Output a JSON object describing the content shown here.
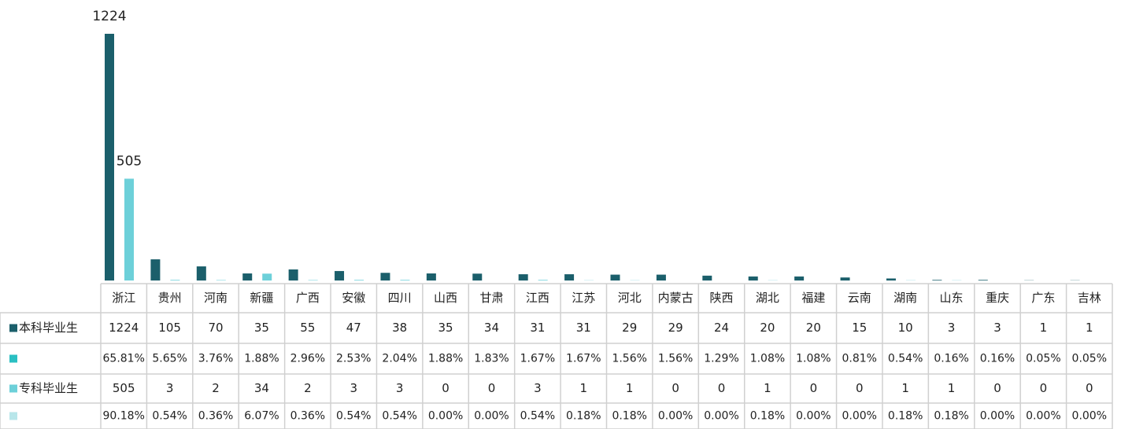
{
  "chart_data": {
    "type": "bar",
    "categories": [
      "浙江",
      "贵州",
      "河南",
      "新疆",
      "广西",
      "安徽",
      "四川",
      "山西",
      "甘肃",
      "江西",
      "江苏",
      "河北",
      "内蒙古",
      "陕西",
      "湖北",
      "福建",
      "云南",
      "湖南",
      "山东",
      "重庆",
      "广东",
      "吉林"
    ],
    "series": [
      {
        "name": "本科毕业生",
        "color": "#1b5f6b",
        "values": [
          1224,
          105,
          70,
          35,
          55,
          47,
          38,
          35,
          34,
          31,
          31,
          29,
          29,
          24,
          20,
          20,
          15,
          10,
          3,
          3,
          1,
          1
        ]
      },
      {
        "color": "#2abfc2",
        "values": [
          65.81,
          5.65,
          3.76,
          1.88,
          2.96,
          2.53,
          2.04,
          1.88,
          1.83,
          1.67,
          1.67,
          1.56,
          1.56,
          1.29,
          1.08,
          1.08,
          0.81,
          0.54,
          0.16,
          0.16,
          0.05,
          0.05
        ],
        "value_labels": [
          "65.81%",
          "5.65%",
          "3.76%",
          "1.88%",
          "2.96%",
          "2.53%",
          "2.04%",
          "1.88%",
          "1.83%",
          "1.67%",
          "1.67%",
          "1.56%",
          "1.56%",
          "1.29%",
          "1.08%",
          "1.08%",
          "0.81%",
          "0.54%",
          "0.16%",
          "0.16%",
          "0.05%",
          "0.05%"
        ]
      },
      {
        "name": "专科毕业生",
        "color": "#6dd0d9",
        "values": [
          505,
          3,
          2,
          34,
          2,
          3,
          3,
          0,
          0,
          3,
          1,
          1,
          0,
          0,
          1,
          0,
          0,
          1,
          1,
          0,
          0,
          0
        ]
      },
      {
        "color": "#b8e6ea",
        "values": [
          90.18,
          0.54,
          0.36,
          6.07,
          0.36,
          0.54,
          0.54,
          0,
          0,
          0.54,
          0.18,
          0.18,
          0,
          0,
          0.18,
          0,
          0,
          0.18,
          0.18,
          0,
          0,
          0
        ],
        "value_labels": [
          "90.18%",
          "0.54%",
          "0.36%",
          "6.07%",
          "0.36%",
          "0.54%",
          "0.54%",
          "0.00%",
          "0.00%",
          "0.54%",
          "0.18%",
          "0.18%",
          "0.00%",
          "0.00%",
          "0.18%",
          "0.00%",
          "0.00%",
          "0.18%",
          "0.18%",
          "0.00%",
          "0.00%",
          "0.00%"
        ]
      }
    ],
    "bar_series": [
      0,
      2
    ],
    "data_labels": [
      [
        0,
        0
      ],
      [
        2,
        0
      ]
    ]
  }
}
